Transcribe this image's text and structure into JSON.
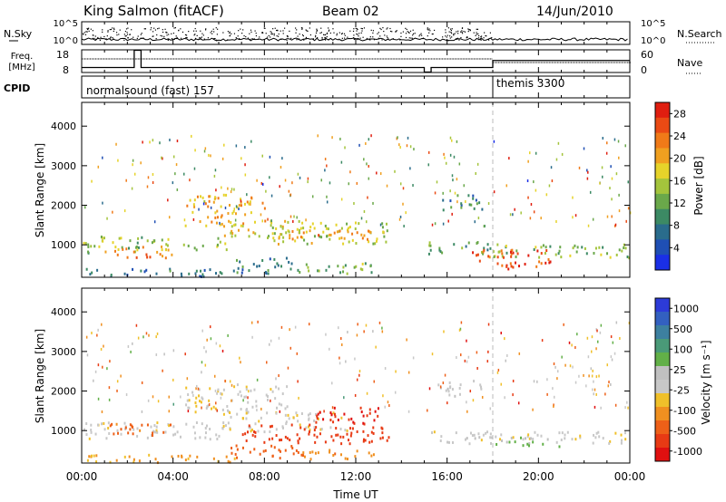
{
  "header": {
    "station": "King Salmon (fitACF)",
    "beam": "Beam 02",
    "date": "14/Jun/2010"
  },
  "noise_panel": {
    "left_label": "N.Sky",
    "right_label": "N.Search",
    "left_ticks": [
      "10^5",
      "10^0"
    ],
    "right_ticks": [
      "10^5",
      "10^0"
    ]
  },
  "freq_panel": {
    "left_label_1": "Freq.",
    "left_label_2": "[MHz]",
    "right_label": "Nave",
    "left_ticks": [
      "18",
      "8"
    ],
    "right_ticks": [
      "60",
      "0"
    ]
  },
  "cpid_panel": {
    "label": "CPID",
    "programs": [
      {
        "name": "normalsound (fast) 157",
        "start": 0
      },
      {
        "name": "themis 3300",
        "start": 18.0
      }
    ]
  },
  "time_axis": {
    "title": "Time UT",
    "tick_labels": [
      "00:00",
      "04:00",
      "08:00",
      "12:00",
      "16:00",
      "20:00",
      "00:00"
    ]
  },
  "colors": {
    "power": [
      "#1a2fe6",
      "#1f4fb4",
      "#2a6c8c",
      "#3c8a64",
      "#6aa84a",
      "#a4c43c",
      "#e6d32a",
      "#f0a020",
      "#f07a18",
      "#ea4a14",
      "#e01e10"
    ],
    "velocity": [
      "#2d3bd8",
      "#3360c0",
      "#3d80a0",
      "#4a9a78",
      "#62b048",
      "#c0c0c0",
      "#c8c8c8",
      "#f0c02a",
      "#f09020",
      "#ee6018",
      "#e83a14",
      "#e01010"
    ]
  },
  "chart_data": [
    {
      "type": "heatmap",
      "title": "",
      "xlabel": "Time UT",
      "ylabel": "Slant Range [km]",
      "xlim": [
        0,
        24
      ],
      "ylim": [
        180,
        4600
      ],
      "yticks": [
        "1000",
        "2000",
        "3000",
        "4000"
      ],
      "colorbar": {
        "label": "Power [dB]",
        "ticks": [
          "4",
          "8",
          "12",
          "16",
          "20",
          "24",
          "28"
        ],
        "range": [
          0,
          30
        ]
      },
      "regions": [
        {
          "t": [
            0.0,
            3.0
          ],
          "r": [
            800,
            1250
          ],
          "v": 14
        },
        {
          "t": [
            1.0,
            4.0
          ],
          "r": [
            700,
            1000
          ],
          "v": 22
        },
        {
          "t": [
            3.0,
            6.5
          ],
          "r": [
            900,
            1200
          ],
          "v": 15
        },
        {
          "t": [
            4.5,
            8.0
          ],
          "r": [
            1500,
            2300
          ],
          "v": 20
        },
        {
          "t": [
            6.0,
            10.0
          ],
          "r": [
            1200,
            1650
          ],
          "v": 18
        },
        {
          "t": [
            8.0,
            13.5
          ],
          "r": [
            1050,
            1600
          ],
          "v": 16
        },
        {
          "t": [
            9.0,
            13.0
          ],
          "r": [
            1150,
            1400
          ],
          "v": 21
        },
        {
          "t": [
            6.5,
            9.5
          ],
          "r": [
            300,
            700
          ],
          "v": 9
        },
        {
          "t": [
            9.5,
            13.0
          ],
          "r": [
            300,
            600
          ],
          "v": 13
        },
        {
          "t": [
            0.0,
            7.0
          ],
          "r": [
            220,
            420
          ],
          "v": 7
        },
        {
          "t": [
            15.0,
            18.0
          ],
          "r": [
            800,
            1100
          ],
          "v": 11
        },
        {
          "t": [
            15.5,
            17.5
          ],
          "r": [
            1900,
            2300
          ],
          "v": 8
        },
        {
          "t": [
            17.5,
            24.0
          ],
          "r": [
            700,
            1050
          ],
          "v": 13
        },
        {
          "t": [
            17.0,
            20.5
          ],
          "r": [
            450,
            900
          ],
          "v": 25
        },
        {
          "t": [
            18.5,
            19.6
          ],
          "r": [
            400,
            650
          ],
          "v": 28
        }
      ],
      "data_gaps": [
        [
          14.6,
          15.1
        ]
      ],
      "program_change_time": 18.0
    },
    {
      "type": "heatmap",
      "title": "",
      "xlabel": "Time UT",
      "ylabel": "Slant Range [km]",
      "xlim": [
        0,
        24
      ],
      "ylim": [
        180,
        4600
      ],
      "yticks": [
        "1000",
        "2000",
        "3000",
        "4000"
      ],
      "colorbar": {
        "label": "Velocity [m s⁻¹]",
        "ticks": [
          "1000",
          "500",
          "100",
          "25",
          "-25",
          "-100",
          "-500",
          "-1000"
        ],
        "range": [
          -1250,
          1250
        ]
      },
      "regions": [
        {
          "t": [
            0.0,
            6.0
          ],
          "r": [
            800,
            1250
          ],
          "v": -5
        },
        {
          "t": [
            1.0,
            4.0
          ],
          "r": [
            900,
            1200
          ],
          "v": -120
        },
        {
          "t": [
            4.5,
            9.0
          ],
          "r": [
            1500,
            2200
          ],
          "v": -10
        },
        {
          "t": [
            6.0,
            12.0
          ],
          "r": [
            1000,
            1500
          ],
          "v": -15
        },
        {
          "t": [
            7.0,
            13.5
          ],
          "r": [
            700,
            1200
          ],
          "v": -300
        },
        {
          "t": [
            10.0,
            13.0
          ],
          "r": [
            1200,
            1650
          ],
          "v": -500
        },
        {
          "t": [
            6.5,
            10.0
          ],
          "r": [
            300,
            650
          ],
          "v": -150
        },
        {
          "t": [
            9.5,
            13.0
          ],
          "r": [
            300,
            550
          ],
          "v": -80
        },
        {
          "t": [
            0.0,
            7.0
          ],
          "r": [
            220,
            420
          ],
          "v": -60
        },
        {
          "t": [
            15.0,
            18.0
          ],
          "r": [
            700,
            1000
          ],
          "v": 0
        },
        {
          "t": [
            15.5,
            17.5
          ],
          "r": [
            1900,
            2300
          ],
          "v": 5
        },
        {
          "t": [
            17.5,
            24.0
          ],
          "r": [
            700,
            1000
          ],
          "v": -8
        },
        {
          "t": [
            18.0,
            21.0
          ],
          "r": [
            600,
            850
          ],
          "v": 60
        }
      ],
      "data_gaps": [
        [
          14.6,
          15.1
        ]
      ],
      "program_change_time": 18.0
    }
  ]
}
